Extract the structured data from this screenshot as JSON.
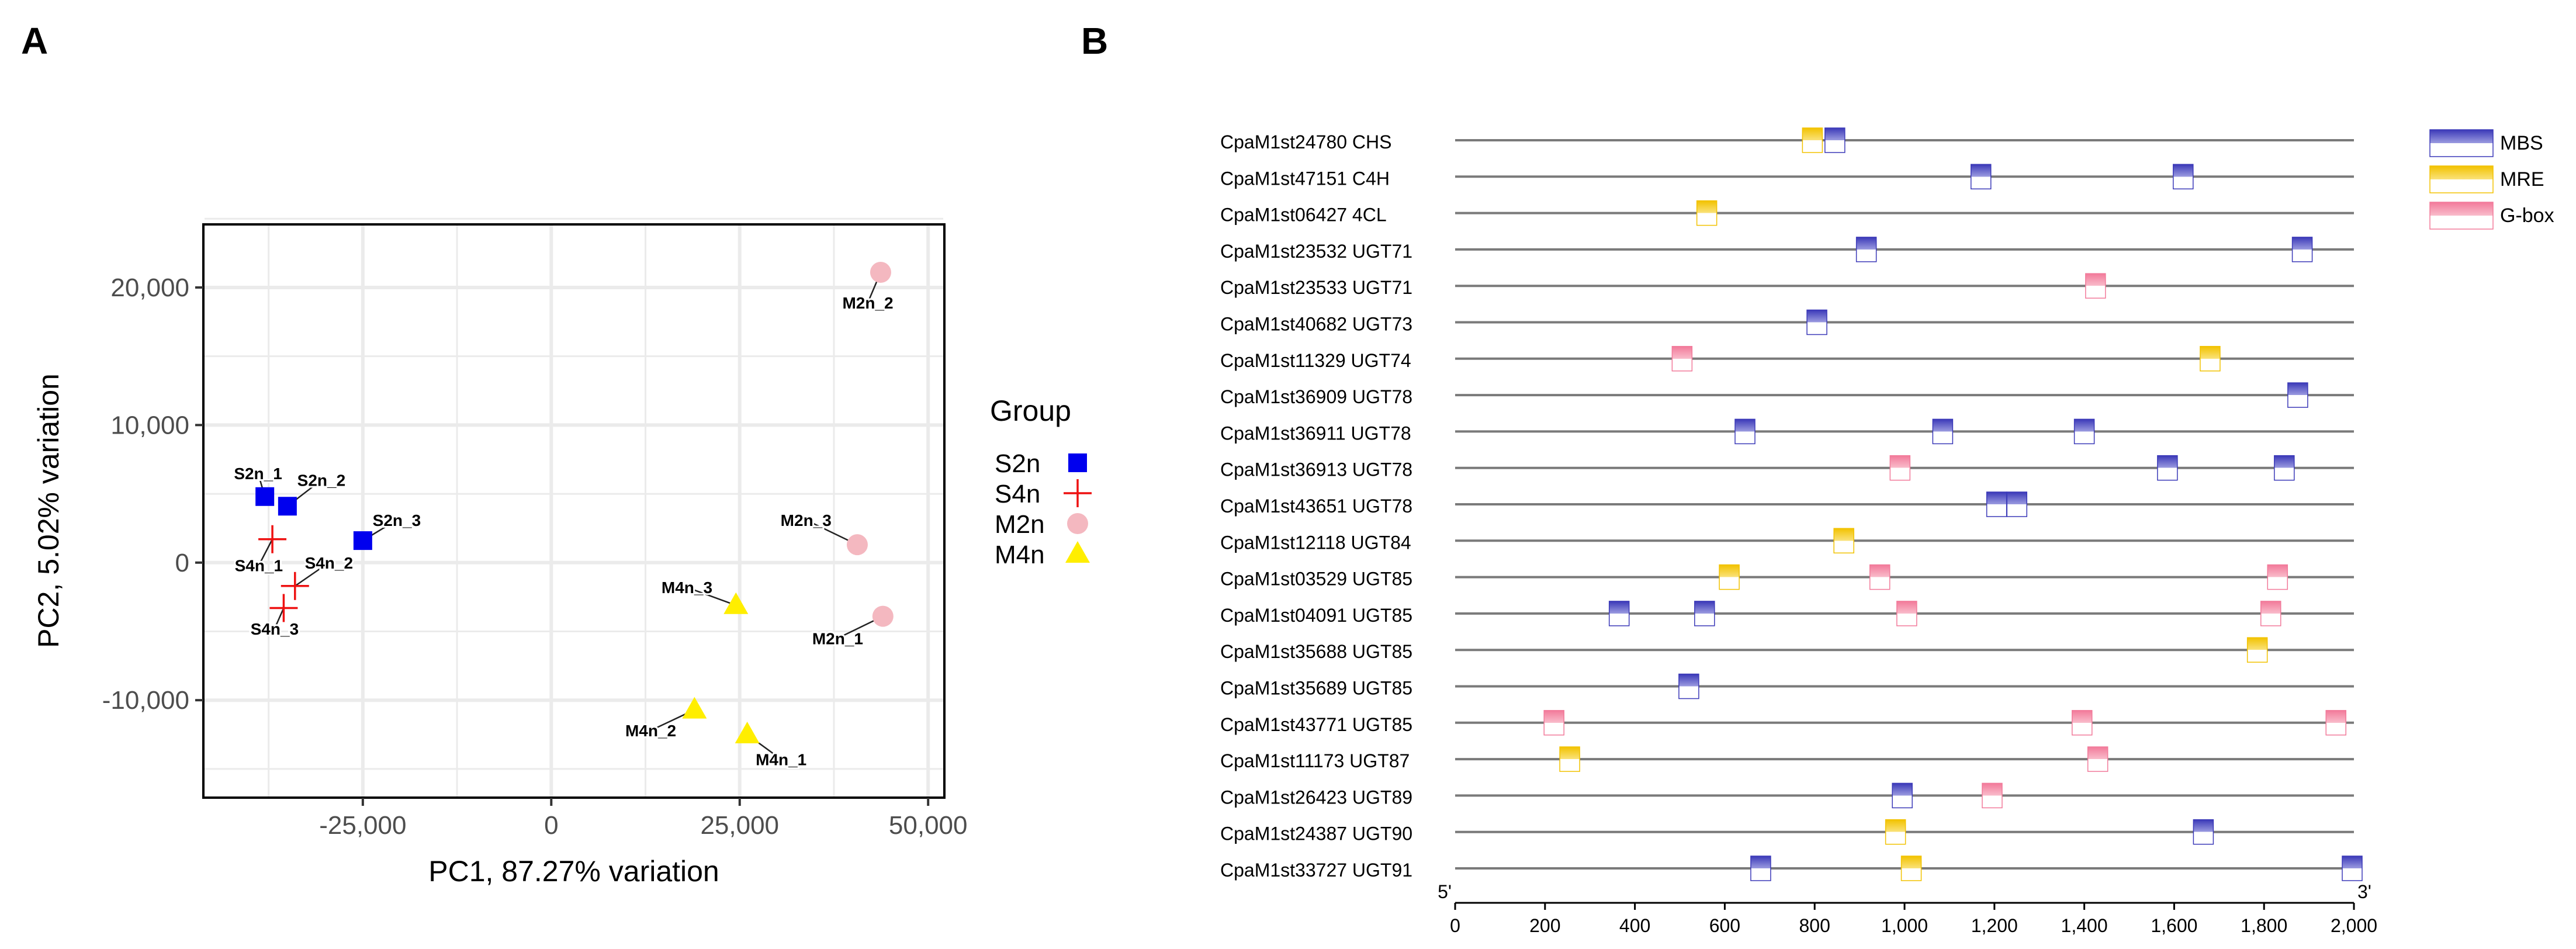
{
  "colors": {
    "S2n": "#0000ee",
    "S4n": "#ee1111",
    "M2n": "#f4b8c0",
    "M4n": "#ffee00",
    "MBS_dark": "#3b39b8",
    "MRE_dark": "#f2c200",
    "Gbox_dark": "#f27a9a",
    "grid": "#ebebeb",
    "line": "#7a7a7a"
  },
  "chart_data": [
    {
      "panel_label": "A",
      "type": "scatter",
      "xlabel": "PC1, 87.27% variation",
      "ylabel": "PC2, 5.02% variation",
      "xlim": [
        -46000,
        52000
      ],
      "ylim": [
        -17000,
        24500
      ],
      "xticks": [
        -25000,
        0,
        25000,
        50000
      ],
      "xtick_labels": [
        "-25,000",
        "0",
        "25,000",
        "50,000"
      ],
      "yticks": [
        20000,
        10000,
        0,
        -10000
      ],
      "ytick_labels": [
        "20,000",
        "10,000",
        "0",
        "-10,000"
      ],
      "grid": true,
      "legend": {
        "title": "Group",
        "position": "right",
        "entries": [
          {
            "group": "S2n",
            "marker": "square"
          },
          {
            "group": "S4n",
            "marker": "plus"
          },
          {
            "group": "M2n",
            "marker": "circle"
          },
          {
            "group": "M4n",
            "marker": "triangle"
          }
        ]
      },
      "points": [
        {
          "label": "S2n_1",
          "group": "S2n",
          "marker": "square",
          "x": -38000,
          "y": 4800,
          "lx": -38900,
          "ly": 6500
        },
        {
          "label": "S2n_2",
          "group": "S2n",
          "marker": "square",
          "x": -35000,
          "y": 4100,
          "lx": -30500,
          "ly": 6000
        },
        {
          "label": "S2n_3",
          "group": "S2n",
          "marker": "square",
          "x": -25000,
          "y": 1600,
          "lx": -20500,
          "ly": 3100
        },
        {
          "label": "S4n_1",
          "group": "S4n",
          "marker": "plus",
          "x": -37000,
          "y": 1700,
          "lx": -38800,
          "ly": -200
        },
        {
          "label": "S4n_2",
          "group": "S4n",
          "marker": "plus",
          "x": -34000,
          "y": -1700,
          "lx": -29500,
          "ly": 0
        },
        {
          "label": "S4n_3",
          "group": "S4n",
          "marker": "plus",
          "x": -35500,
          "y": -3300,
          "lx": -36700,
          "ly": -4800
        },
        {
          "label": "M2n_1",
          "group": "M2n",
          "marker": "circle",
          "x": 44000,
          "y": -3900,
          "lx": 38000,
          "ly": -5500
        },
        {
          "label": "M2n_2",
          "group": "M2n",
          "marker": "circle",
          "x": 43700,
          "y": 21100,
          "lx": 42000,
          "ly": 18900
        },
        {
          "label": "M2n_3",
          "group": "M2n",
          "marker": "circle",
          "x": 40600,
          "y": 1300,
          "lx": 33800,
          "ly": 3100
        },
        {
          "label": "M4n_1",
          "group": "M4n",
          "marker": "triangle",
          "x": 26000,
          "y": -12500,
          "lx": 30500,
          "ly": -14300
        },
        {
          "label": "M4n_2",
          "group": "M4n",
          "marker": "triangle",
          "x": 19000,
          "y": -10700,
          "lx": 13200,
          "ly": -12200
        },
        {
          "label": "M4n_3",
          "group": "M4n",
          "marker": "triangle",
          "x": 24500,
          "y": -3100,
          "lx": 18000,
          "ly": -1800
        }
      ]
    },
    {
      "panel_label": "B",
      "type": "motif-map",
      "x_range": [
        0,
        2000
      ],
      "xticks": [
        0,
        200,
        400,
        600,
        800,
        1000,
        1200,
        1400,
        1600,
        1800,
        2000
      ],
      "xtick_labels": [
        "0",
        "200",
        "400",
        "600",
        "800",
        "1,000",
        "1,200",
        "1,400",
        "1,600",
        "1,800",
        "2,000"
      ],
      "end_labels": {
        "left": "5'",
        "right": "3'"
      },
      "legend": [
        "MBS",
        "MRE",
        "G-box"
      ],
      "genes": [
        {
          "name": "CpaM1st24780 CHS",
          "motifs": [
            {
              "type": "MRE",
              "pos": 795
            },
            {
              "type": "MBS",
              "pos": 845
            }
          ]
        },
        {
          "name": "CpaM1st47151 C4H",
          "motifs": [
            {
              "type": "MBS",
              "pos": 1170
            },
            {
              "type": "MBS",
              "pos": 1620
            }
          ]
        },
        {
          "name": "CpaM1st06427 4CL",
          "motifs": [
            {
              "type": "MRE",
              "pos": 560
            }
          ]
        },
        {
          "name": "CpaM1st23532 UGT71",
          "motifs": [
            {
              "type": "MBS",
              "pos": 915
            },
            {
              "type": "MBS",
              "pos": 1885
            }
          ]
        },
        {
          "name": "CpaM1st23533 UGT71",
          "motifs": [
            {
              "type": "G-box",
              "pos": 1425
            }
          ]
        },
        {
          "name": "CpaM1st40682 UGT73",
          "motifs": [
            {
              "type": "MBS",
              "pos": 805
            }
          ]
        },
        {
          "name": "CpaM1st11329 UGT74",
          "motifs": [
            {
              "type": "G-box",
              "pos": 505
            },
            {
              "type": "MRE",
              "pos": 1680
            }
          ]
        },
        {
          "name": "CpaM1st36909 UGT78",
          "motifs": [
            {
              "type": "MBS",
              "pos": 1875
            }
          ]
        },
        {
          "name": "CpaM1st36911 UGT78",
          "motifs": [
            {
              "type": "MBS",
              "pos": 645
            },
            {
              "type": "MBS",
              "pos": 1085
            },
            {
              "type": "MBS",
              "pos": 1400
            }
          ]
        },
        {
          "name": "CpaM1st36913 UGT78",
          "motifs": [
            {
              "type": "G-box",
              "pos": 990
            },
            {
              "type": "MBS",
              "pos": 1585
            },
            {
              "type": "MBS",
              "pos": 1845
            }
          ]
        },
        {
          "name": "CpaM1st43651 UGT78",
          "motifs": [
            {
              "type": "MBS",
              "pos": 1205
            },
            {
              "type": "MBS",
              "pos": 1250
            }
          ]
        },
        {
          "name": "CpaM1st12118 UGT84",
          "motifs": [
            {
              "type": "MRE",
              "pos": 865
            }
          ]
        },
        {
          "name": "CpaM1st03529 UGT85",
          "motifs": [
            {
              "type": "MRE",
              "pos": 610
            },
            {
              "type": "G-box",
              "pos": 945
            },
            {
              "type": "G-box",
              "pos": 1830
            }
          ]
        },
        {
          "name": "CpaM1st04091 UGT85",
          "motifs": [
            {
              "type": "MBS",
              "pos": 365
            },
            {
              "type": "MBS",
              "pos": 555
            },
            {
              "type": "G-box",
              "pos": 1005
            },
            {
              "type": "G-box",
              "pos": 1815
            }
          ]
        },
        {
          "name": "CpaM1st35688 UGT85",
          "motifs": [
            {
              "type": "MRE",
              "pos": 1785
            }
          ]
        },
        {
          "name": "CpaM1st35689 UGT85",
          "motifs": [
            {
              "type": "MBS",
              "pos": 520
            }
          ]
        },
        {
          "name": "CpaM1st43771 UGT85",
          "motifs": [
            {
              "type": "G-box",
              "pos": 220
            },
            {
              "type": "G-box",
              "pos": 1395
            },
            {
              "type": "G-box",
              "pos": 1960
            }
          ]
        },
        {
          "name": "CpaM1st11173 UGT87",
          "motifs": [
            {
              "type": "MRE",
              "pos": 255
            },
            {
              "type": "G-box",
              "pos": 1430
            }
          ]
        },
        {
          "name": "CpaM1st26423 UGT89",
          "motifs": [
            {
              "type": "MBS",
              "pos": 995
            },
            {
              "type": "G-box",
              "pos": 1195
            }
          ]
        },
        {
          "name": "CpaM1st24387 UGT90",
          "motifs": [
            {
              "type": "MRE",
              "pos": 980
            },
            {
              "type": "MBS",
              "pos": 1665
            }
          ]
        },
        {
          "name": "CpaM1st33727 UGT91",
          "motifs": [
            {
              "type": "MBS",
              "pos": 680
            },
            {
              "type": "MRE",
              "pos": 1015
            },
            {
              "type": "MBS",
              "pos": 2000
            }
          ]
        }
      ]
    }
  ]
}
